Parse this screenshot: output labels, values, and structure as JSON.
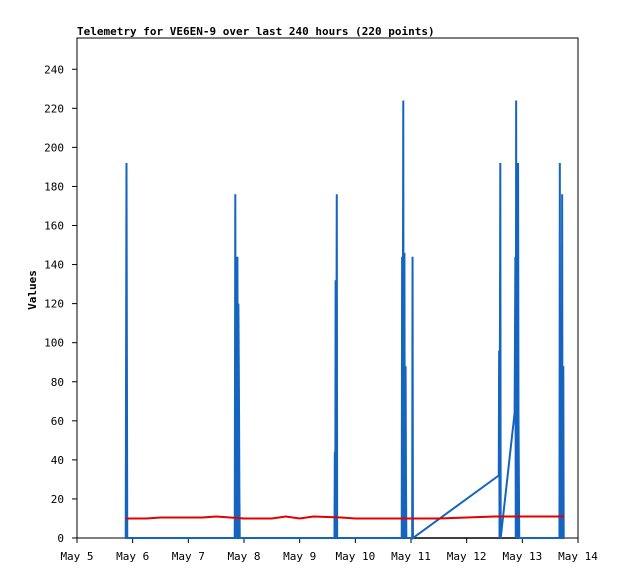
{
  "chart_data": {
    "type": "line",
    "title": "Telemetry for VE6EN-9 over last 240 hours (220 points)",
    "xlabel": "",
    "ylabel": "Values",
    "x_ticks": [
      "May 5",
      "May 6",
      "May 7",
      "May 8",
      "May 9",
      "May 10",
      "May 11",
      "May 12",
      "May 13",
      "May 14"
    ],
    "y_ticks": [
      0,
      20,
      40,
      60,
      80,
      100,
      120,
      140,
      160,
      180,
      200,
      220,
      240
    ],
    "xlim": [
      "May 5 00:00",
      "May 14 00:00"
    ],
    "ylim": [
      0,
      256
    ],
    "grid": false,
    "series": [
      {
        "color": "#1565c0",
        "points": [
          [
            "May 5 21:00",
            0
          ],
          [
            "May 5 21:20",
            192
          ],
          [
            "May 5 21:40",
            0
          ],
          [
            "May 7 20:00",
            0
          ],
          [
            "May 7 20:15",
            176
          ],
          [
            "May 7 20:30",
            0
          ],
          [
            "May 7 21:00",
            0
          ],
          [
            "May 7 21:10",
            144
          ],
          [
            "May 7 21:20",
            0
          ],
          [
            "May 7 21:35",
            120
          ],
          [
            "May 7 21:50",
            72
          ],
          [
            "May 7 22:00",
            24
          ],
          [
            "May 7 22:10",
            0
          ],
          [
            "May 9 15:00",
            0
          ],
          [
            "May 9 15:10",
            44
          ],
          [
            "May 9 15:20",
            0
          ],
          [
            "May 9 15:30",
            132
          ],
          [
            "May 9 15:40",
            0
          ],
          [
            "May 9 16:00",
            176
          ],
          [
            "May 9 16:10",
            0
          ],
          [
            "May 10 20:00",
            0
          ],
          [
            "May 10 20:10",
            144
          ],
          [
            "May 10 20:20",
            0
          ],
          [
            "May 10 20:40",
            224
          ],
          [
            "May 10 20:50",
            0
          ],
          [
            "May 10 21:10",
            146
          ],
          [
            "May 10 21:20",
            0
          ],
          [
            "May 10 21:40",
            88
          ],
          [
            "May 10 21:50",
            30
          ],
          [
            "May 10 22:00",
            0
          ],
          [
            "May 11 00:30",
            0
          ],
          [
            "May 11 00:40",
            144
          ],
          [
            "May 11 00:50",
            0
          ],
          [
            "May 12 13:50",
            32
          ],
          [
            "May 12 14:00",
            96
          ],
          [
            "May 12 14:10",
            0
          ],
          [
            "May 12 14:30",
            192
          ],
          [
            "May 12 14:40",
            0
          ],
          [
            "May 12 20:40",
            64
          ],
          [
            "May 12 21:00",
            144
          ],
          [
            "May 12 21:10",
            0
          ],
          [
            "May 12 21:20",
            224
          ],
          [
            "May 12 21:30",
            0
          ],
          [
            "May 12 21:40",
            190
          ],
          [
            "May 12 21:50",
            0
          ],
          [
            "May 12 22:10",
            192
          ],
          [
            "May 12 22:20",
            64
          ],
          [
            "May 12 22:40",
            0
          ],
          [
            "May 13 16:00",
            0
          ],
          [
            "May 13 16:10",
            192
          ],
          [
            "May 13 16:20",
            0
          ],
          [
            "May 13 17:00",
            0
          ],
          [
            "May 13 17:10",
            176
          ],
          [
            "May 13 17:20",
            0
          ],
          [
            "May 13 17:40",
            88
          ],
          [
            "May 13 17:50",
            0
          ]
        ]
      },
      {
        "color": "#e00000",
        "points": [
          [
            "May 5 21:00",
            10
          ],
          [
            "May 6 06:00",
            10
          ],
          [
            "May 6 12:00",
            10.5
          ],
          [
            "May 7 06:00",
            10.5
          ],
          [
            "May 7 12:00",
            11
          ],
          [
            "May 8 00:00",
            10
          ],
          [
            "May 8 12:00",
            10
          ],
          [
            "May 8 18:00",
            11
          ],
          [
            "May 9 00:00",
            10
          ],
          [
            "May 9 06:00",
            11
          ],
          [
            "May 9 18:00",
            10.5
          ],
          [
            "May 10 00:00",
            10
          ],
          [
            "May 11 00:00",
            10
          ],
          [
            "May 11 12:00",
            10
          ],
          [
            "May 12 00:00",
            10.5
          ],
          [
            "May 12 12:00",
            11
          ],
          [
            "May 13 00:00",
            11
          ],
          [
            "May 13 12:00",
            11
          ],
          [
            "May 13 18:00",
            11
          ]
        ]
      }
    ]
  }
}
